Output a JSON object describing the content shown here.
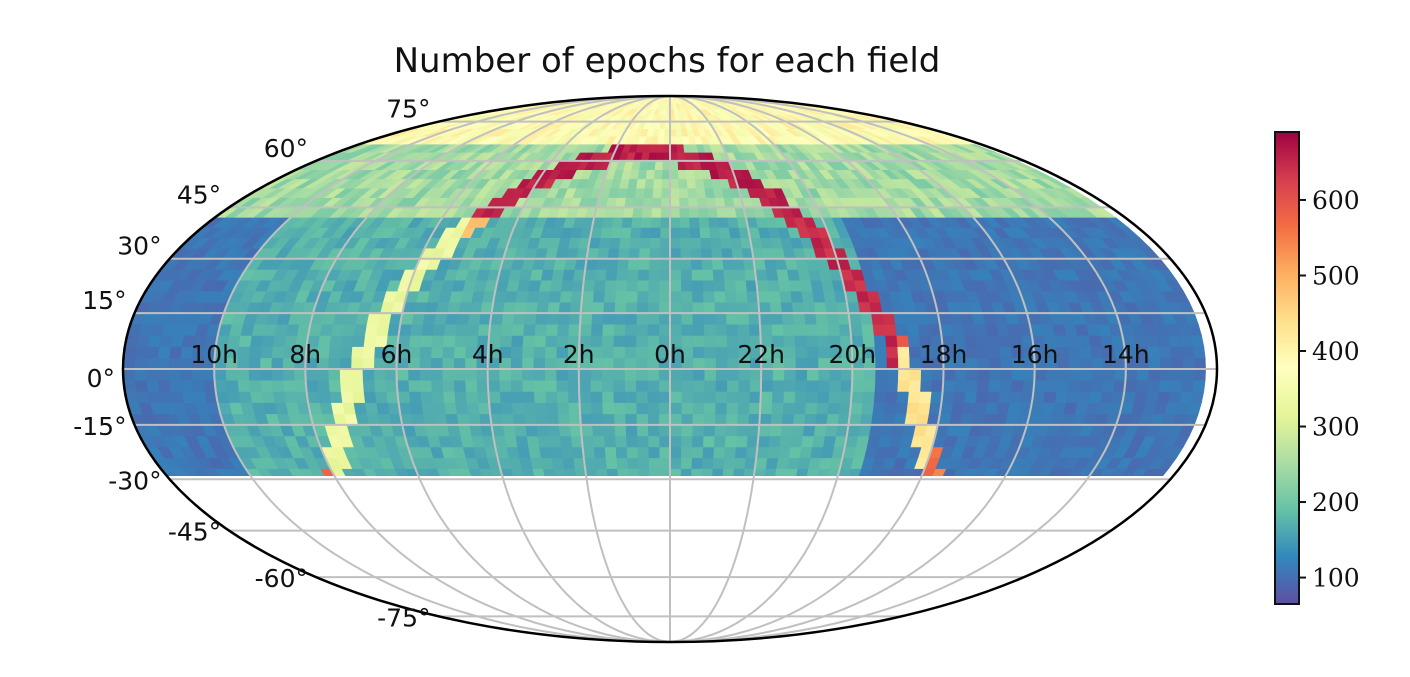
{
  "chart_data": {
    "type": "heatmap",
    "projection": "mollweide",
    "title": "Number of epochs for each field",
    "x_axis": {
      "quantity": "right ascension",
      "tick_labels": [
        "14h",
        "16h",
        "18h",
        "20h",
        "22h",
        "0h",
        "2h",
        "4h",
        "6h",
        "8h",
        "10h"
      ],
      "tick_values_hours": [
        14,
        16,
        18,
        20,
        22,
        0,
        2,
        4,
        6,
        8,
        10
      ],
      "orientation": "ra increases to the left"
    },
    "y_axis": {
      "quantity": "declination",
      "tick_labels": [
        "75°",
        "60°",
        "45°",
        "30°",
        "15°",
        "0°",
        "-15°",
        "-30°",
        "-45°",
        "-60°",
        "-75°"
      ],
      "tick_values_deg": [
        75,
        60,
        45,
        30,
        15,
        0,
        -15,
        -30,
        -45,
        -60,
        -75
      ]
    },
    "coverage_dec_range": [
      -30,
      90
    ],
    "grid": true,
    "colorbar": {
      "colormap": "Spectral_r",
      "range": [
        65,
        690
      ],
      "ticks": [
        100,
        200,
        300,
        400,
        500,
        600
      ],
      "tick_labels": [
        "100",
        "200",
        "300",
        "400",
        "500",
        "600"
      ],
      "placement": "right"
    },
    "regions": [
      {
        "region": "background, RA 10h-20h",
        "approx_epochs": 100
      },
      {
        "region": "background, RA 20h-6h",
        "approx_epochs": 170
      },
      {
        "region": "background, dec above 45",
        "approx_epochs": 250
      },
      {
        "region": "polar cap, dec above 70",
        "approx_epochs": 400
      },
      {
        "region": "galactic plane arc, RA 19h-21h, dec 10 to 40",
        "approx_epochs": 660
      },
      {
        "region": "galactic plane arc, dec above 45",
        "approx_epochs": 680
      },
      {
        "region": "galactic plane arc, RA 3h-5h, dec 30 to 50",
        "approx_epochs": 480
      },
      {
        "region": "galactic plane arc, RA 5h-7h, dec -25 to 25",
        "approx_epochs": 320
      },
      {
        "region": "galactic plane arc, RA 18h-20h, dec -30 to 5",
        "approx_epochs": 420
      }
    ]
  }
}
